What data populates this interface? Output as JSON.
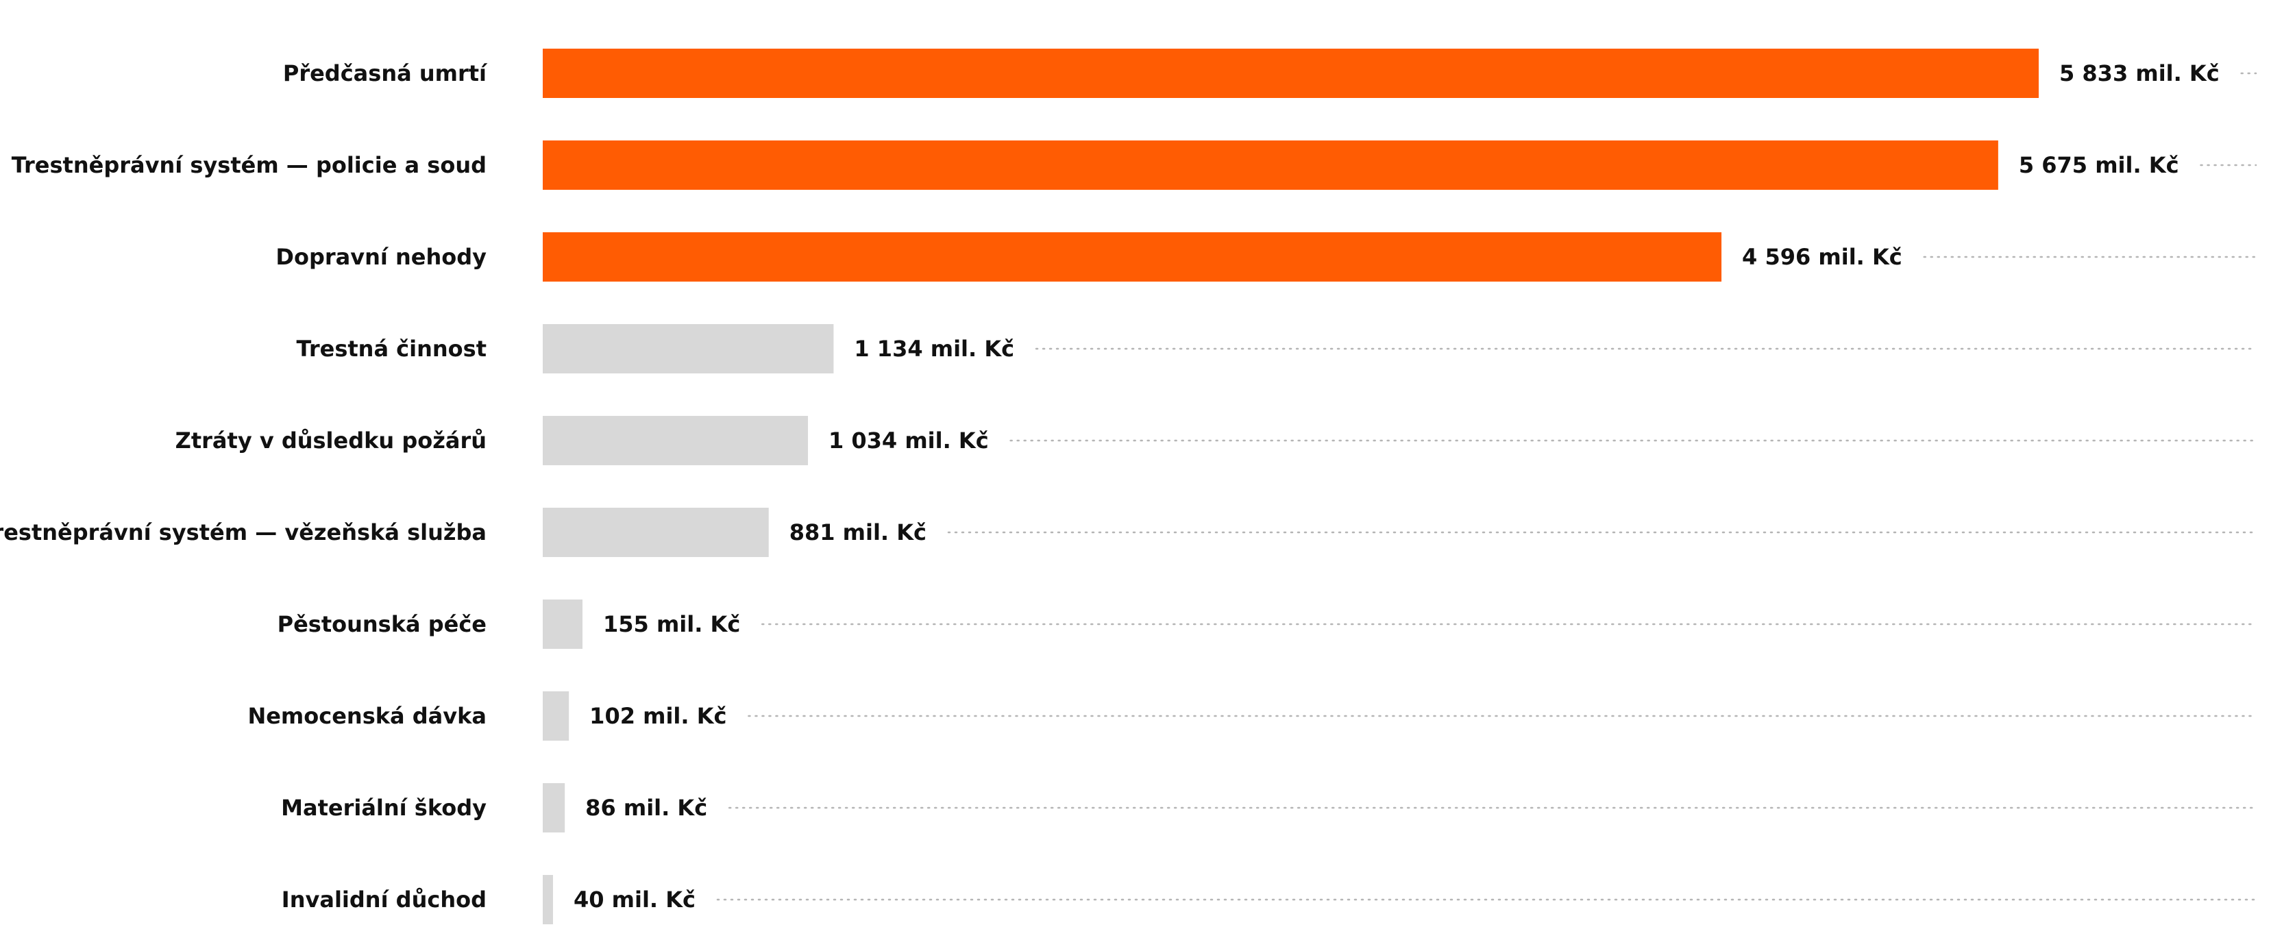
{
  "chart_data": {
    "type": "bar",
    "orientation": "horizontal",
    "unit_suffix": "mil. Kč",
    "highlight_color": "#ff5c03",
    "base_color": "#d8d8d8",
    "highlighted_count": 3,
    "grid": false,
    "legend": "none",
    "categories": [
      "Předčasná umrtí",
      "Trestněprávní systém — policie a soud",
      "Dopravní nehody",
      "Trestná činnost",
      "Ztráty v důsledku požárů",
      "Trestněprávní systém — vězeňská služba",
      "Pěstounská péče",
      "Nemocenská dávka",
      "Materiální škody",
      "Invalidní důchod"
    ],
    "values": [
      5833,
      5675,
      4596,
      1134,
      1034,
      881,
      155,
      102,
      86,
      40
    ],
    "value_labels": [
      "5 833 mil. Kč",
      "5 675 mil. Kč",
      "4 596 mil. Kč",
      "1 134 mil. Kč",
      "1 034 mil. Kč",
      "881 mil. Kč",
      "155 mil. Kč",
      "102 mil. Kč",
      "86 mil. Kč",
      "40 mil. Kč"
    ],
    "xlim": [
      0,
      5833
    ]
  }
}
